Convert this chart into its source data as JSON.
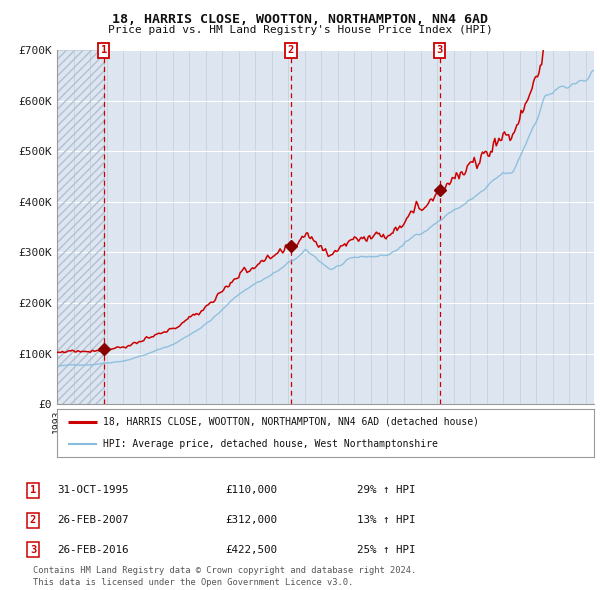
{
  "title1": "18, HARRIS CLOSE, WOOTTON, NORTHAMPTON, NN4 6AD",
  "title2": "Price paid vs. HM Land Registry's House Price Index (HPI)",
  "legend_line1": "18, HARRIS CLOSE, WOOTTON, NORTHAMPTON, NN4 6AD (detached house)",
  "legend_line2": "HPI: Average price, detached house, West Northamptonshire",
  "table_entries": [
    {
      "num": 1,
      "date": "31-OCT-1995",
      "price": "£110,000",
      "change": "29% ↑ HPI",
      "year": 1995.83
    },
    {
      "num": 2,
      "date": "26-FEB-2007",
      "price": "£312,000",
      "change": "13% ↑ HPI",
      "year": 2007.15
    },
    {
      "num": 3,
      "date": "26-FEB-2016",
      "price": "£422,500",
      "change": "25% ↑ HPI",
      "year": 2016.15
    }
  ],
  "sale_prices": [
    110000,
    312000,
    422500
  ],
  "sale_years": [
    1995.83,
    2007.15,
    2016.15
  ],
  "footer": "Contains HM Land Registry data © Crown copyright and database right 2024.\nThis data is licensed under the Open Government Licence v3.0.",
  "background_color": "#dde6f0",
  "hatch_color": "#b8c8dc",
  "line_color_red": "#cc0000",
  "line_color_blue": "#88bbdd",
  "marker_color": "#880000",
  "vline_color": "#cc0000",
  "grid_color": "#c8d8e8",
  "text_color": "#222222",
  "box_color": "#cc0000",
  "ylim": [
    0,
    700000
  ],
  "xlim_start": 1993.0,
  "xlim_end": 2025.5,
  "y_ticks": [
    0,
    100000,
    200000,
    300000,
    400000,
    500000,
    600000,
    700000
  ],
  "y_labels": [
    "£0",
    "£100K",
    "£200K",
    "£300K",
    "£400K",
    "£500K",
    "£600K",
    "£700K"
  ]
}
